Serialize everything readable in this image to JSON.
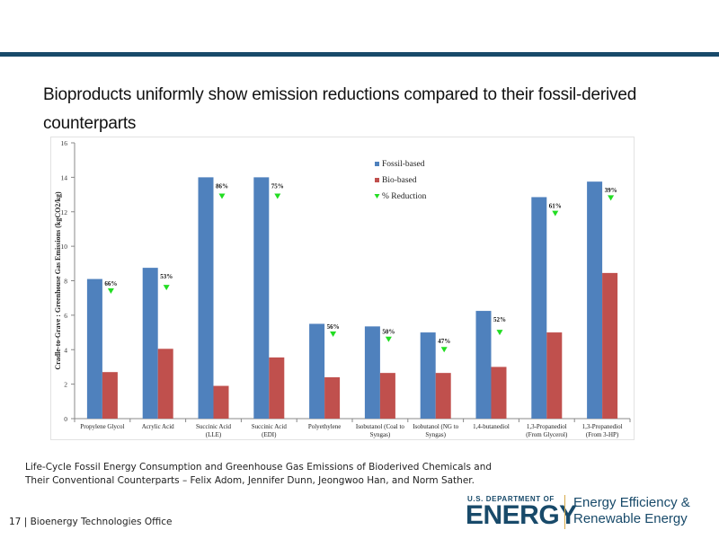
{
  "slide": {
    "headline": "Bioproducts uniformly show emission reductions compared to their fossil-derived counterparts",
    "citation_line1": "Life-Cycle Fossil Energy Consumption and Greenhouse Gas Emissions of Bioderived Chemicals and",
    "citation_line2": "Their Conventional Counterparts – Felix Adom, Jennifer Dunn, Jeongwoo Han, and Norm Sather.",
    "footer": "17 | Bioenergy Technologies Office",
    "logo": {
      "department": "U.S. DEPARTMENT OF",
      "energy": "ENERGY",
      "office_line1": "Energy Efficiency &",
      "office_line2": "Renewable Energy"
    },
    "colors": {
      "rule": "#184a6a",
      "fossil": "#4f81bd",
      "bio": "#c0504d",
      "reduction_marker": "#22dd22"
    }
  },
  "chart_data": {
    "type": "bar",
    "title": "",
    "xlabel": "",
    "ylabel": "Cradle-to-Grave : Greenhouse Gas Emissions (kgCO2/kg)",
    "ylim": [
      0,
      16
    ],
    "yticks": [
      0,
      2,
      4,
      6,
      8,
      10,
      12,
      14,
      16
    ],
    "grid": false,
    "legend_position": "top-center",
    "categories": [
      [
        "Propylene Glycol"
      ],
      [
        "Acrylic Acid"
      ],
      [
        "Succinic Acid",
        "(LLE)"
      ],
      [
        "Succinic Acid",
        "(EDI)"
      ],
      [
        "Polyethylene"
      ],
      [
        "Isobutanol (Coal to",
        "Syngas)"
      ],
      [
        "Isobutanol (NG to",
        "Syngas)"
      ],
      [
        "1,4-butanediol"
      ],
      [
        "1,3-Propanediol",
        "(From Glycerol)"
      ],
      [
        "1,3-Propanediol",
        "(From 3-HP)"
      ]
    ],
    "series": [
      {
        "name": "Fossil-based",
        "values": [
          8.1,
          8.75,
          14.0,
          14.0,
          5.5,
          5.35,
          5.0,
          6.25,
          12.85,
          13.75
        ]
      },
      {
        "name": "Bio-based",
        "values": [
          2.7,
          4.05,
          1.9,
          3.55,
          2.4,
          2.65,
          2.65,
          3.0,
          5.0,
          8.45
        ]
      }
    ],
    "reduction": {
      "name": "% Reduction",
      "labels": [
        "66%",
        "53%",
        "86%",
        "75%",
        "56%",
        "50%",
        "47%",
        "52%",
        "61%",
        "39%"
      ],
      "marker_y": [
        7.4,
        7.6,
        12.9,
        12.9,
        4.9,
        4.6,
        4.0,
        5.0,
        11.9,
        12.8
      ]
    }
  }
}
